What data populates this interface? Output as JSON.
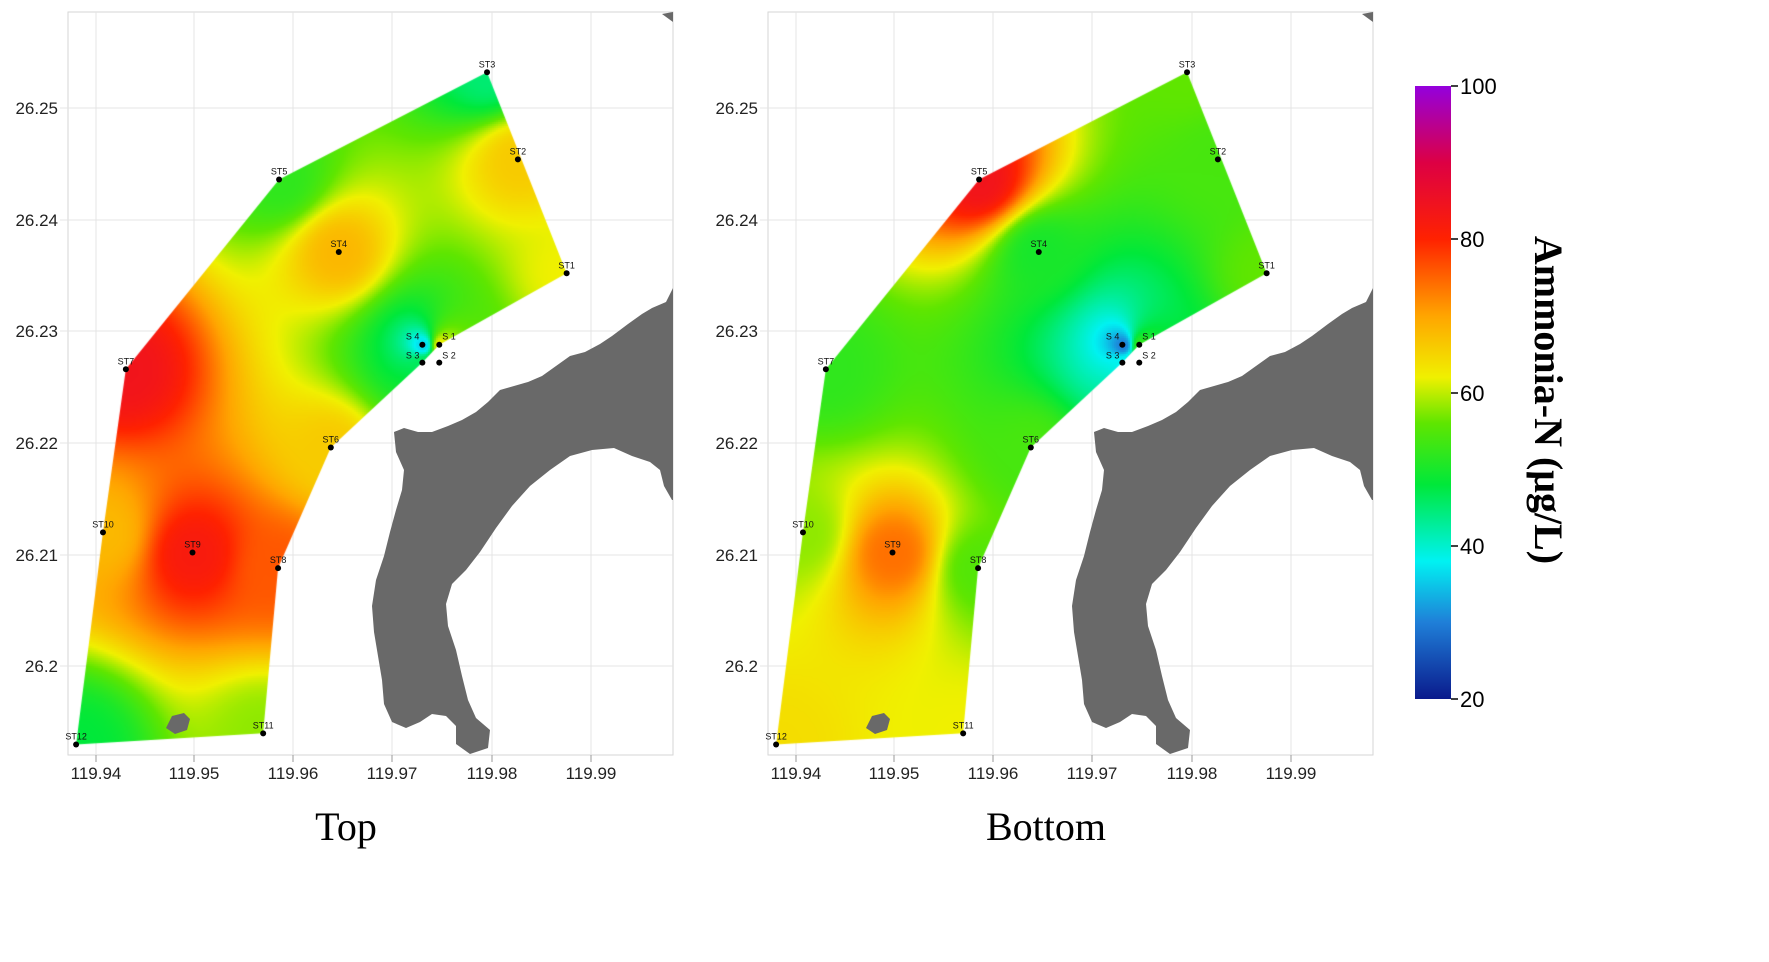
{
  "panels": [
    {
      "id": "top",
      "caption": "Top",
      "x_ticks": [
        "119.94",
        "119.95",
        "119.96",
        "119.97",
        "119.98",
        "119.99"
      ],
      "y_ticks": [
        "26.25",
        "26.24",
        "26.23",
        "26.22",
        "26.21",
        "26.2"
      ],
      "stations": [
        {
          "label": "ST1",
          "lon": 119.9873,
          "lat": 26.2352,
          "value": 62
        },
        {
          "label": "ST2",
          "lon": 119.9824,
          "lat": 26.2454,
          "value": 66
        },
        {
          "label": "ST3",
          "lon": 119.9793,
          "lat": 26.2532,
          "value": 45
        },
        {
          "label": "ST4",
          "lon": 119.9644,
          "lat": 26.2371,
          "value": 68
        },
        {
          "label": "ST5",
          "lon": 119.9584,
          "lat": 26.2436,
          "value": 52
        },
        {
          "label": "ST6",
          "lon": 119.9636,
          "lat": 26.2196,
          "value": 66
        },
        {
          "label": "ST7",
          "lon": 119.943,
          "lat": 26.2266,
          "value": 84
        },
        {
          "label": "ST8",
          "lon": 119.9583,
          "lat": 26.2088,
          "value": 76
        },
        {
          "label": "ST9",
          "lon": 119.9497,
          "lat": 26.2102,
          "value": 82
        },
        {
          "label": "ST10",
          "lon": 119.9407,
          "lat": 26.212,
          "value": 68
        },
        {
          "label": "ST11",
          "lon": 119.9568,
          "lat": 26.194,
          "value": 58
        },
        {
          "label": "ST12",
          "lon": 119.938,
          "lat": 26.193,
          "value": 48
        },
        {
          "label": "S 1",
          "lon": 119.9745,
          "lat": 26.2288,
          "value": 62
        },
        {
          "label": "S 2",
          "lon": 119.9745,
          "lat": 26.2272,
          "value": 60
        },
        {
          "label": "S 3",
          "lon": 119.9728,
          "lat": 26.2272,
          "value": 46
        },
        {
          "label": "S 4",
          "lon": 119.9728,
          "lat": 26.2288,
          "value": 36
        }
      ]
    },
    {
      "id": "bottom",
      "caption": "Bottom",
      "x_ticks": [
        "119.94",
        "119.95",
        "119.96",
        "119.97",
        "119.98",
        "119.99"
      ],
      "y_ticks": [
        "26.25",
        "26.24",
        "26.23",
        "26.22",
        "26.21",
        "26.2"
      ],
      "stations": [
        {
          "label": "ST1",
          "lon": 119.9873,
          "lat": 26.2352,
          "value": 56
        },
        {
          "label": "ST2",
          "lon": 119.9824,
          "lat": 26.2454,
          "value": 54
        },
        {
          "label": "ST3",
          "lon": 119.9793,
          "lat": 26.2532,
          "value": 56
        },
        {
          "label": "ST4",
          "lon": 119.9644,
          "lat": 26.2371,
          "value": 50
        },
        {
          "label": "ST5",
          "lon": 119.9584,
          "lat": 26.2436,
          "value": 84
        },
        {
          "label": "ST6",
          "lon": 119.9636,
          "lat": 26.2196,
          "value": 54
        },
        {
          "label": "ST7",
          "lon": 119.943,
          "lat": 26.2266,
          "value": 52
        },
        {
          "label": "ST8",
          "lon": 119.9583,
          "lat": 26.2088,
          "value": 55
        },
        {
          "label": "ST9",
          "lon": 119.9497,
          "lat": 26.2102,
          "value": 74
        },
        {
          "label": "ST10",
          "lon": 119.9407,
          "lat": 26.212,
          "value": 58
        },
        {
          "label": "ST11",
          "lon": 119.9568,
          "lat": 26.194,
          "value": 62
        },
        {
          "label": "ST12",
          "lon": 119.938,
          "lat": 26.193,
          "value": 64
        },
        {
          "label": "S 1",
          "lon": 119.9745,
          "lat": 26.2288,
          "value": 52
        },
        {
          "label": "S 2",
          "lon": 119.9745,
          "lat": 26.2272,
          "value": 56
        },
        {
          "label": "S 3",
          "lon": 119.9728,
          "lat": 26.2272,
          "value": 38
        },
        {
          "label": "S 4",
          "lon": 119.9728,
          "lat": 26.2288,
          "value": 30
        }
      ]
    }
  ],
  "colorbar": {
    "title": "Ammonia-N (μg/L)",
    "min": 20,
    "max": 100,
    "ticks": [
      "100",
      "80",
      "60",
      "40",
      "20"
    ],
    "stops": [
      {
        "value": 20,
        "color": "#0a1a8c"
      },
      {
        "value": 30,
        "color": "#1f7fd8"
      },
      {
        "value": 38,
        "color": "#00f2f2"
      },
      {
        "value": 48,
        "color": "#00e83a"
      },
      {
        "value": 56,
        "color": "#5fe600"
      },
      {
        "value": 62,
        "color": "#f0f000"
      },
      {
        "value": 70,
        "color": "#ffa500"
      },
      {
        "value": 80,
        "color": "#ff2200"
      },
      {
        "value": 90,
        "color": "#dd0044"
      },
      {
        "value": 100,
        "color": "#9400dd"
      }
    ]
  },
  "land_color": "#696969"
}
